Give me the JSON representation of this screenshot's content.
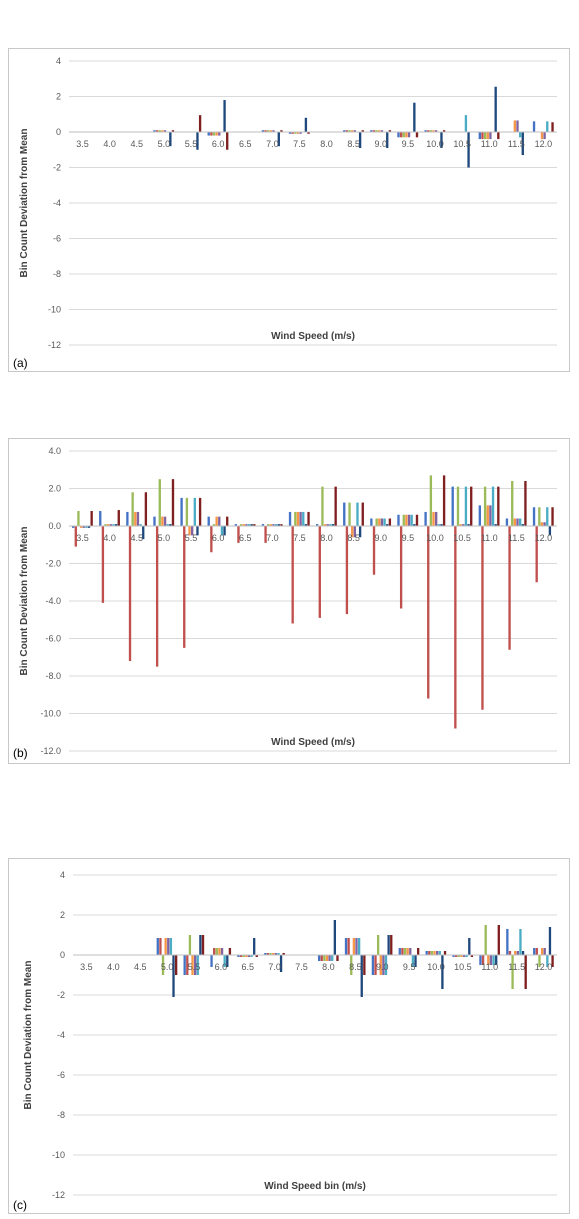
{
  "colors": [
    "#4472C4",
    "#C0504D",
    "#9BBB59",
    "#F79646",
    "#8064A2",
    "#4BACC6",
    "#1F497D",
    "#7F1F1F"
  ],
  "chart_data": [
    {
      "type": "bar",
      "panel_label": "(a)",
      "xlabel": "Wind Speed (m/s)",
      "ylabel": "Bin Count Deviation from Mean",
      "ylim": [
        -12,
        4
      ],
      "yticks": [
        4,
        2,
        0,
        -2,
        -4,
        -6,
        -8,
        -10,
        -12
      ],
      "ytick_labels": [
        "4",
        "2",
        "0",
        "-2",
        "-4",
        "-6",
        "-8",
        "-10",
        "-12"
      ],
      "grid": true,
      "categories": [
        "3.5",
        "4.0",
        "4.5",
        "5.0",
        "5.5",
        "6.0",
        "6.5",
        "7.0",
        "7.5",
        "8.0",
        "8.5",
        "9.0",
        "9.5",
        "10.0",
        "10.5",
        "11.0",
        "11.5",
        "12.0"
      ],
      "series": [
        {
          "values": [
            0,
            0,
            0,
            0.1,
            0,
            -0.2,
            0,
            0.1,
            -0.1,
            0,
            0.1,
            0.1,
            -0.3,
            0.1,
            0,
            -0.4,
            0,
            0.6
          ]
        },
        {
          "values": [
            0,
            0,
            0,
            0.1,
            0,
            -0.2,
            0,
            0.1,
            -0.1,
            0,
            0.1,
            0.1,
            -0.3,
            0.1,
            0,
            -0.4,
            0,
            0
          ]
        },
        {
          "values": [
            0,
            0,
            0,
            0.1,
            0,
            -0.2,
            0,
            0.1,
            -0.1,
            0,
            0.1,
            0.1,
            -0.3,
            0.1,
            0,
            -0.4,
            0,
            0
          ]
        },
        {
          "values": [
            0,
            0,
            0,
            0.1,
            0,
            -0.2,
            0,
            0.1,
            -0.1,
            0,
            0.1,
            0.1,
            -0.3,
            0.1,
            0,
            -0.4,
            0.65,
            -0.4
          ]
        },
        {
          "values": [
            0,
            0,
            0,
            0.1,
            0,
            -0.2,
            0,
            0.1,
            -0.1,
            0,
            0.1,
            0.1,
            -0.3,
            0.1,
            0,
            -0.4,
            0.65,
            -0.4
          ]
        },
        {
          "values": [
            0,
            0,
            0,
            0,
            0,
            0,
            0,
            0,
            0,
            0,
            0,
            0,
            0,
            0,
            0.95,
            0,
            -0.3,
            0.6
          ]
        },
        {
          "values": [
            0,
            0,
            0,
            -0.8,
            -1.0,
            1.8,
            0,
            -0.8,
            0.8,
            0,
            -0.9,
            -0.9,
            1.65,
            -0.9,
            -2.0,
            2.55,
            -1.3,
            0
          ]
        },
        {
          "values": [
            0,
            0,
            0,
            0.1,
            0.95,
            -1.0,
            0,
            0.1,
            -0.1,
            0,
            0.1,
            0.1,
            -0.3,
            0.1,
            0,
            -0.4,
            0,
            0.55
          ]
        }
      ]
    },
    {
      "type": "bar",
      "panel_label": "(b)",
      "xlabel": "Wind Speed (m/s)",
      "ylabel": "Bin Count Deviation from Mean",
      "ylim": [
        -12,
        4
      ],
      "yticks": [
        4,
        2,
        0,
        -2,
        -4,
        -6,
        -8,
        -10,
        -12
      ],
      "ytick_labels": [
        "4.0",
        "2.0",
        "0.0",
        "-2.0",
        "-4.0",
        "-6.0",
        "-8.0",
        "-10.0",
        "-12.0"
      ],
      "grid": true,
      "categories": [
        "3.5",
        "4.0",
        "4.5",
        "5.0",
        "5.5",
        "6.0",
        "6.5",
        "7.0",
        "7.5",
        "8.0",
        "8.5",
        "9.0",
        "9.5",
        "10.0",
        "10.5",
        "11.0",
        "11.5",
        "12.0"
      ],
      "series": [
        {
          "values": [
            -0.1,
            0.8,
            0.75,
            0.5,
            1.5,
            0.5,
            0.1,
            0.1,
            0.75,
            0.1,
            1.25,
            0.4,
            0.6,
            0.75,
            2.1,
            1.1,
            0.4,
            1.0
          ]
        },
        {
          "values": [
            -1.1,
            -4.1,
            -7.2,
            -7.5,
            -6.5,
            -1.4,
            -0.9,
            -0.9,
            -5.2,
            -4.9,
            -4.7,
            -2.6,
            -4.4,
            -9.2,
            -10.8,
            -9.8,
            -6.6,
            -3.0
          ]
        },
        {
          "values": [
            0.8,
            0.1,
            1.8,
            2.5,
            1.5,
            0.1,
            0.1,
            0.1,
            0.75,
            2.1,
            1.25,
            0.4,
            0.6,
            2.7,
            2.1,
            2.1,
            2.4,
            1.0
          ]
        },
        {
          "values": [
            -0.1,
            0.1,
            0.75,
            0.5,
            -0.5,
            0.5,
            0.1,
            0.1,
            0.75,
            0.1,
            -0.6,
            0.4,
            0.6,
            0.75,
            0.1,
            1.1,
            0.4,
            0.2
          ]
        },
        {
          "values": [
            -0.1,
            0.1,
            0.75,
            0.5,
            -0.5,
            0.5,
            0.1,
            0.1,
            0.75,
            0.1,
            -0.6,
            0.4,
            0.6,
            0.75,
            0.1,
            1.1,
            0.4,
            0.2
          ]
        },
        {
          "values": [
            -0.1,
            0.1,
            0.1,
            0.1,
            1.5,
            -0.5,
            0.1,
            0.1,
            0.75,
            0.1,
            1.25,
            0.4,
            0.6,
            0.1,
            2.1,
            2.1,
            0.4,
            1.0
          ]
        },
        {
          "values": [
            -0.1,
            0.1,
            -0.7,
            0.1,
            -0.5,
            -0.5,
            0.1,
            0.1,
            0.1,
            0.1,
            -0.6,
            0.1,
            0.1,
            0.1,
            0.1,
            0.1,
            0.1,
            -0.5
          ]
        },
        {
          "values": [
            0.8,
            0.85,
            1.8,
            2.5,
            1.5,
            0.5,
            0.1,
            0.1,
            0.75,
            2.1,
            1.25,
            0.4,
            0.6,
            2.7,
            2.1,
            2.1,
            2.4,
            1.0
          ]
        }
      ]
    },
    {
      "type": "bar",
      "panel_label": "(c)",
      "xlabel": "Wind Speed bin (m/s)",
      "ylabel": "Bin Count Deviation from Mean",
      "ylim": [
        -12,
        4
      ],
      "yticks": [
        4,
        2,
        0,
        -2,
        -4,
        -6,
        -8,
        -10,
        -12
      ],
      "ytick_labels": [
        "4",
        "2",
        "0",
        "-2",
        "-4",
        "-6",
        "-8",
        "-10",
        "-12"
      ],
      "grid": true,
      "categories": [
        "3.5",
        "4.0",
        "4.5",
        "5.0",
        "5.5",
        "6.0",
        "6.5",
        "7.0",
        "7.5",
        "8.0",
        "8.5",
        "9.0",
        "9.5",
        "10.0",
        "10.5",
        "11.0",
        "11.5",
        "12.0"
      ],
      "series": [
        {
          "values": [
            0,
            0,
            0,
            0.85,
            -1.0,
            -0.6,
            -0.1,
            0.1,
            0,
            -0.3,
            0.85,
            -1.0,
            0.35,
            0.2,
            -0.1,
            -0.5,
            1.3,
            0.35
          ]
        },
        {
          "values": [
            0,
            0,
            0,
            0.85,
            -1.0,
            0.35,
            -0.1,
            0.1,
            0,
            -0.3,
            0.85,
            -1.0,
            0.35,
            0.2,
            -0.1,
            -0.5,
            0.2,
            0.35
          ]
        },
        {
          "values": [
            0,
            0,
            0,
            -1.0,
            1.0,
            0.35,
            -0.1,
            0.1,
            0,
            -0.3,
            -1.0,
            1.0,
            0.35,
            0.2,
            -0.1,
            1.5,
            -1.7,
            -0.6
          ]
        },
        {
          "values": [
            0,
            0,
            0,
            0.85,
            -1.0,
            0.35,
            -0.1,
            0.1,
            0,
            -0.3,
            0.85,
            -1.0,
            0.35,
            0.2,
            -0.1,
            -0.5,
            0.2,
            0.35
          ]
        },
        {
          "values": [
            0,
            0,
            0,
            0.85,
            -1.0,
            0.35,
            -0.1,
            0.1,
            0,
            -0.3,
            0.85,
            -1.0,
            0.35,
            0.2,
            -0.1,
            -0.5,
            0.2,
            0.35
          ]
        },
        {
          "values": [
            0,
            0,
            0,
            0.85,
            -1.0,
            -0.6,
            -0.1,
            0.1,
            0,
            -0.3,
            0.85,
            -1.0,
            -0.6,
            0.2,
            -0.1,
            -0.5,
            1.3,
            -0.6
          ]
        },
        {
          "values": [
            0,
            0,
            0,
            -2.1,
            1.0,
            -0.6,
            0.85,
            -0.85,
            0,
            1.75,
            -2.1,
            1.0,
            -0.6,
            -1.7,
            0.85,
            -0.5,
            0.2,
            1.4
          ]
        },
        {
          "values": [
            0,
            0,
            0,
            -1.0,
            1.0,
            0.35,
            -0.1,
            0.1,
            0,
            -0.3,
            -1.0,
            1.0,
            0.35,
            0.2,
            -0.1,
            1.5,
            -1.7,
            -0.6
          ]
        }
      ]
    }
  ]
}
